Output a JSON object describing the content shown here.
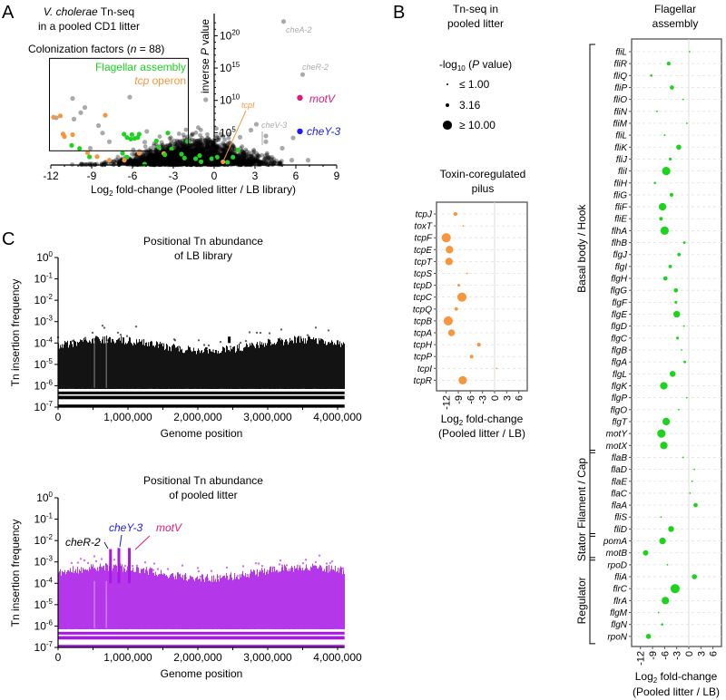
{
  "panels": {
    "a": "A",
    "b": "B",
    "c": "C"
  },
  "colors": {
    "flagellar": "#1ed31e",
    "tcp": "#f7963c",
    "other": "#aaaaaa",
    "background": "#000000",
    "motV": "#e0187a",
    "cheY3": "#1a1aff",
    "pooled": "#a817e6"
  },
  "panelA": {
    "title_italic": "V. cholerae",
    "title_rest": " Tn-seq",
    "title_line2": "in a pooled CD1 litter",
    "box_pre": "Colonization factors (",
    "box_n": "n",
    "box_post": " = 88)",
    "legend_flagellar": "Flagellar assembly",
    "legend_tcp_italic": "tcp",
    "legend_tcp_rest": " operon",
    "ylabel_pre": "inverse ",
    "ylabel_p": "P",
    "ylabel_post": " value",
    "xlabel_pre": "Log",
    "xlabel_sub": "2",
    "xlabel_post": " fold-change (Pooled litter / LB library)"
  },
  "panelB": {
    "header1": "Tn-seq in",
    "header2": "pooled litter",
    "legend_title_pre": "-log",
    "legend_title_sub": "10",
    "legend_title_mid": " (",
    "legend_title_p": "P",
    "legend_title_post": " value)",
    "legend_items": [
      {
        "label": "≤  1.00",
        "value": 1
      },
      {
        "label": "3.16",
        "value": 3.16
      },
      {
        "label": "≥  10.00",
        "value": 10
      }
    ],
    "tcp_title1": "Toxin-coregulated",
    "tcp_title2": "pilus",
    "flag_title1": "Flagellar",
    "flag_title2": "assembly",
    "xlabel_pre": "Log",
    "xlabel_sub": "2",
    "xlabel_post": " fold-change",
    "xlabel_line2": "(Pooled litter / LB)"
  },
  "panelC": {
    "top_title1": "Positional Tn abundance",
    "top_title2": "of LB library",
    "bottom_title1": "Positional Tn abundance",
    "bottom_title2": "of pooled litter",
    "ylabel": "Tn insertion frequency",
    "xlabel": "Genome position",
    "annot_cheR2": "cheR-2",
    "annot_cheY3": "cheY-3",
    "annot_motV": "motV"
  },
  "chart_data": [
    {
      "id": "volcano",
      "type": "scatter",
      "title": "V. cholerae Tn-seq in a pooled CD1 litter",
      "xlabel": "Log2 fold-change (Pooled litter / LB library)",
      "ylabel": "inverse P value",
      "xlim": [
        -12,
        9
      ],
      "xticks": [
        "-12",
        "-9",
        "-6",
        "-3",
        "0",
        "3",
        "6",
        "9"
      ],
      "xtick_values": [
        -12,
        -9,
        -6,
        -3,
        0,
        3,
        6,
        9
      ],
      "yscale": "log",
      "ytick_exponents": [
        "5",
        "10",
        "15",
        "20"
      ],
      "ytick_values": [
        5,
        10,
        15,
        20
      ],
      "y_units": "log10 inverse P",
      "box": {
        "label": "Colonization factors (n = 88)",
        "xrange": [
          -12.1,
          -1.9
        ],
        "yrange": [
          2.2,
          16.5
        ]
      },
      "flagellar_points": [
        [
          -10.47,
          3.04
        ],
        [
          -9.89,
          2.57
        ],
        [
          -9.16,
          1.26
        ],
        [
          -6.62,
          4.77
        ],
        [
          -6.4,
          4.25
        ],
        [
          -6.13,
          4.02
        ],
        [
          -5.84,
          4.11
        ],
        [
          -5.51,
          4.77
        ],
        [
          -6.04,
          4.72
        ],
        [
          -5.62,
          4.25
        ],
        [
          -6.73,
          1.82
        ],
        [
          -6.4,
          1.22
        ],
        [
          -5.11,
          0.14
        ],
        [
          -4.24,
          3.74
        ],
        [
          -4.07,
          2.76
        ],
        [
          -3.4,
          4.95
        ],
        [
          -3.62,
          1.59
        ],
        [
          -3.13,
          2.48
        ],
        [
          -2.4,
          1.68
        ],
        [
          -2.18,
          1.08
        ],
        [
          -1.96,
          3.65
        ],
        [
          -1.36,
          0.98
        ],
        [
          -1.07,
          1.45
        ],
        [
          -0.96,
          0.52
        ],
        [
          -0.18,
          0.98
        ],
        [
          0.22,
          1.22
        ],
        [
          0.98,
          0.42
        ],
        [
          1.76,
          2.34
        ],
        [
          1.38,
          1.22
        ]
      ],
      "tcp_points": [
        [
          -11.8,
          7.4
        ],
        [
          -11.3,
          7.6
        ],
        [
          -8.0,
          7.7
        ],
        [
          -11.1,
          4.8
        ],
        [
          -11.0,
          4.4
        ],
        [
          -10.4,
          4.7
        ],
        [
          -9.3,
          1.9
        ],
        [
          -8.6,
          1.3
        ],
        [
          -7.7,
          0.75
        ],
        [
          -6.6,
          0.75
        ],
        [
          -5.5,
          1.8
        ],
        [
          -3.7,
          1.8
        ]
      ],
      "other_points": [
        [
          -10.4,
          10.3
        ],
        [
          -6.2,
          10.5
        ],
        [
          -9.8,
          8.1
        ],
        [
          -10.3,
          7.1
        ],
        [
          -9.5,
          8.9
        ],
        [
          -8.5,
          6.1
        ],
        [
          -4.95,
          5.2
        ],
        [
          -0.62,
          10.1
        ],
        [
          2.7,
          5.4
        ],
        [
          3.8,
          4.5
        ],
        [
          3.8,
          3.6
        ],
        [
          5.8,
          4.2
        ],
        [
          5.0,
          2.6
        ],
        [
          6.9,
          0.75
        ],
        [
          5.7,
          0.75
        ],
        [
          1.9,
          4.3
        ],
        [
          -11.6,
          7.3
        ],
        [
          -7.7,
          3.6
        ],
        [
          -8.2,
          4.95
        ],
        [
          -5.1,
          3.55
        ],
        [
          -9.1,
          2.6
        ]
      ],
      "labeled_points": [
        {
          "label": "cheA-2",
          "fc": 5.1,
          "logp": 22.2,
          "color_key": "other"
        },
        {
          "label": "cheR-2",
          "fc": 6.5,
          "logp": 14.0,
          "color_key": "other"
        },
        {
          "label": "motV",
          "fc": 6.3,
          "logp": 10.4,
          "color_key": "motV"
        },
        {
          "label": "cheY-3",
          "fc": 6.3,
          "logp": 5.2,
          "color_key": "cheY3"
        },
        {
          "label": "cheV-3",
          "fc": 3.1,
          "logp": 6.3,
          "color_key": "other"
        },
        {
          "label": "tcpI",
          "fc": 0.65,
          "logp": 0.5,
          "color_key": "tcp"
        }
      ],
      "background_cloud": {
        "count": 2600,
        "center_fc": -1.5,
        "note": "all other genes (black)"
      }
    },
    {
      "id": "tcp",
      "type": "scatter",
      "title": "Toxin-coregulated pilus",
      "xlabel": "Log2 fold-change (Pooled litter / LB)",
      "xlim": [
        -13,
        9
      ],
      "xticks": [
        "-12",
        "-9",
        "-6",
        "-3",
        "0",
        "3",
        "6"
      ],
      "xtick_values": [
        -12,
        -9,
        -6,
        -3,
        0,
        3,
        6
      ],
      "size_variable": "-log10 (P value)",
      "genes": [
        {
          "gene": "tcpJ",
          "fc": -9.7,
          "neglog10p": 3.5
        },
        {
          "gene": "toxT",
          "fc": -7.8,
          "neglog10p": 0.8
        },
        {
          "gene": "tcpF",
          "fc": -12.0,
          "neglog10p": 10
        },
        {
          "gene": "tcpE",
          "fc": -11.2,
          "neglog10p": 8
        },
        {
          "gene": "tcpT",
          "fc": -11.3,
          "neglog10p": 8
        },
        {
          "gene": "tcpS",
          "fc": -6.8,
          "neglog10p": 0.8
        },
        {
          "gene": "tcpD",
          "fc": -8.9,
          "neglog10p": 2
        },
        {
          "gene": "tcpC",
          "fc": -8.1,
          "neglog10p": 10
        },
        {
          "gene": "tcpQ",
          "fc": -9.5,
          "neglog10p": 3
        },
        {
          "gene": "tcpB",
          "fc": -11.5,
          "neglog10p": 10
        },
        {
          "gene": "tcpA",
          "fc": -10.7,
          "neglog10p": 7
        },
        {
          "gene": "tcpH",
          "fc": -3.9,
          "neglog10p": 3.5
        },
        {
          "gene": "tcpP",
          "fc": -5.7,
          "neglog10p": 3.2
        },
        {
          "gene": "tcpI",
          "fc": 0.5,
          "neglog10p": 0.6
        },
        {
          "gene": "tcpR",
          "fc": -7.9,
          "neglog10p": 9
        }
      ]
    },
    {
      "id": "flagellar",
      "type": "scatter",
      "title": "Flagellar assembly",
      "xlabel": "Log2 fold-change (Pooled litter / LB)",
      "xlim": [
        -13,
        8
      ],
      "xticks": [
        "-12",
        "-9",
        "-6",
        "-3",
        "0",
        "3",
        "6"
      ],
      "xtick_values": [
        -12,
        -9,
        -6,
        -3,
        0,
        3,
        6
      ],
      "groups": [
        {
          "label": "Basal body / Hook",
          "first": 0,
          "last": 33
        },
        {
          "label": "Filament / Cap",
          "first": 34,
          "last": 40
        },
        {
          "label": "Stator",
          "first": 41,
          "last": 42
        },
        {
          "label": "Regulator",
          "first": 43,
          "last": 49
        }
      ],
      "genes": [
        {
          "gene": "fliL",
          "fc": 0.2,
          "neglog10p": 0.8
        },
        {
          "gene": "fliR",
          "fc": -5.0,
          "neglog10p": 3.5
        },
        {
          "gene": "fliQ",
          "fc": -9.3,
          "neglog10p": 1.8
        },
        {
          "gene": "fliP",
          "fc": -4.2,
          "neglog10p": 4
        },
        {
          "gene": "fliO",
          "fc": -1.4,
          "neglog10p": 0.8
        },
        {
          "gene": "fliN",
          "fc": -7.9,
          "neglog10p": 0.9
        },
        {
          "gene": "fliM",
          "fc": -0.5,
          "neglog10p": 0.8
        },
        {
          "gene": "fliL",
          "fc": -6.0,
          "neglog10p": 1
        },
        {
          "gene": "fliK",
          "fc": -2.5,
          "neglog10p": 5
        },
        {
          "gene": "fliJ",
          "fc": -4.6,
          "neglog10p": 2.2
        },
        {
          "gene": "fliI",
          "fc": -5.6,
          "neglog10p": 9
        },
        {
          "gene": "fliH",
          "fc": -8.4,
          "neglog10p": 1.6
        },
        {
          "gene": "fliG",
          "fc": -4.3,
          "neglog10p": 3.5
        },
        {
          "gene": "fliF",
          "fc": -6.5,
          "neglog10p": 8
        },
        {
          "gene": "fliE",
          "fc": -6.9,
          "neglog10p": 3.2
        },
        {
          "gene": "flhA",
          "fc": -6.0,
          "neglog10p": 9
        },
        {
          "gene": "flhB",
          "fc": -1.1,
          "neglog10p": 2
        },
        {
          "gene": "flgJ",
          "fc": -2.4,
          "neglog10p": 3
        },
        {
          "gene": "flgI",
          "fc": -4.6,
          "neglog10p": 3
        },
        {
          "gene": "flgH",
          "fc": -5.8,
          "neglog10p": 4
        },
        {
          "gene": "flgG",
          "fc": -3.2,
          "neglog10p": 4
        },
        {
          "gene": "flgF",
          "fc": -3.2,
          "neglog10p": 2.2
        },
        {
          "gene": "flgE",
          "fc": -3.0,
          "neglog10p": 7
        },
        {
          "gene": "flgD",
          "fc": -1.2,
          "neglog10p": 0.8
        },
        {
          "gene": "flgC",
          "fc": -2.8,
          "neglog10p": 2.2
        },
        {
          "gene": "flgB",
          "fc": -1.8,
          "neglog10p": 0.8
        },
        {
          "gene": "flgA",
          "fc": -1.0,
          "neglog10p": 2
        },
        {
          "gene": "flgL",
          "fc": -4.0,
          "neglog10p": 6
        },
        {
          "gene": "flgK",
          "fc": -6.2,
          "neglog10p": 8
        },
        {
          "gene": "flgP",
          "fc": -0.5,
          "neglog10p": 0.8
        },
        {
          "gene": "flgO",
          "fc": -2.5,
          "neglog10p": 0.8
        },
        {
          "gene": "flgT",
          "fc": -5.6,
          "neglog10p": 8
        },
        {
          "gene": "motY",
          "fc": -6.8,
          "neglog10p": 9
        },
        {
          "gene": "motX",
          "fc": -6.2,
          "neglog10p": 8
        },
        {
          "gene": "flaB",
          "fc": -1.4,
          "neglog10p": 0.8
        },
        {
          "gene": "flaD",
          "fc": 1.4,
          "neglog10p": 0.8
        },
        {
          "gene": "flaE",
          "fc": 0.8,
          "neglog10p": 0.8
        },
        {
          "gene": "flaC",
          "fc": 0.3,
          "neglog10p": 0.8
        },
        {
          "gene": "flaA",
          "fc": 1.7,
          "neglog10p": 4
        },
        {
          "gene": "fliS",
          "fc": -6.9,
          "neglog10p": 0.8
        },
        {
          "gene": "fliD",
          "fc": -4.4,
          "neglog10p": 6
        },
        {
          "gene": "pomA",
          "fc": -6.5,
          "neglog10p": 7
        },
        {
          "gene": "motB",
          "fc": -10.7,
          "neglog10p": 5.5
        },
        {
          "gene": "rpoD",
          "fc": -5.3,
          "neglog10p": 0.8
        },
        {
          "gene": "fliA",
          "fc": 1.4,
          "neglog10p": 5
        },
        {
          "gene": "flrC",
          "fc": -3.4,
          "neglog10p": 10
        },
        {
          "gene": "flrA",
          "fc": -5.8,
          "neglog10p": 8
        },
        {
          "gene": "flgM",
          "fc": -7.5,
          "neglog10p": 0.8
        },
        {
          "gene": "flgN",
          "fc": -6.6,
          "neglog10p": 1.6
        },
        {
          "gene": "rpoN",
          "fc": -10.0,
          "neglog10p": 5
        }
      ]
    },
    {
      "id": "lb_library",
      "type": "scatter",
      "title": "Positional Tn abundance of LB library",
      "xlabel": "Genome position",
      "ylabel": "Tn insertion frequency",
      "yscale": "log",
      "xlim": [
        0,
        4100000
      ],
      "xticks": [
        "0",
        "1,000,000",
        "2,000,000",
        "3,000,000",
        "4,000,000"
      ],
      "xtick_values": [
        0,
        1000000,
        2000000,
        3000000,
        4000000
      ],
      "ytick_exponents": [
        "0",
        "-1",
        "-2",
        "-3",
        "-4",
        "-5",
        "-6",
        "-7"
      ],
      "ytick_values": [
        0,
        -1,
        -2,
        -3,
        -4,
        -5,
        -6,
        -7
      ],
      "typical_max_log10": -4.1,
      "peaks": [
        {
          "position": 2450000,
          "log10_freq": -3.7
        }
      ]
    },
    {
      "id": "pooled_litter",
      "type": "scatter",
      "title": "Positional Tn abundance of pooled litter",
      "xlabel": "Genome position",
      "ylabel": "Tn insertion frequency",
      "yscale": "log",
      "xlim": [
        0,
        4100000
      ],
      "xticks": [
        "0",
        "1,000,000",
        "2,000,000",
        "3,000,000",
        "4,000,000"
      ],
      "xtick_values": [
        0,
        1000000,
        2000000,
        3000000,
        4000000
      ],
      "ytick_exponents": [
        "0",
        "-1",
        "-2",
        "-3",
        "-4",
        "-5",
        "-6",
        "-7"
      ],
      "ytick_values": [
        0,
        -1,
        -2,
        -3,
        -4,
        -5,
        -6,
        -7
      ],
      "typical_max_log10": -3.5,
      "peaks": [
        {
          "gene": "cheR-2",
          "position": 750000,
          "log10_freq": -2.4
        },
        {
          "gene": "cheY-3",
          "position": 870000,
          "log10_freq": -2.35
        },
        {
          "gene": "motV",
          "position": 1020000,
          "log10_freq": -2.35
        }
      ]
    }
  ]
}
